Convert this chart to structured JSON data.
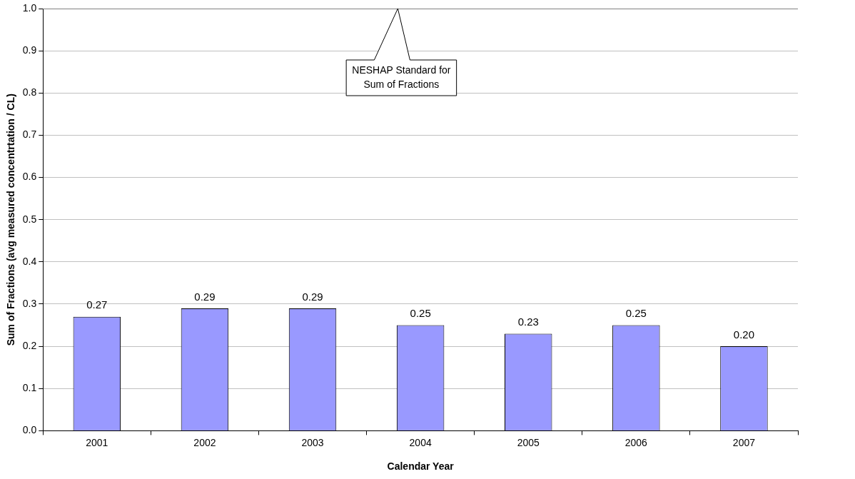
{
  "chart_data": {
    "type": "bar",
    "xlabel": "Calendar Year",
    "ylabel": "Sum of Fractions (avg measured concentrtation / CL)",
    "categories": [
      "2001",
      "2002",
      "2003",
      "2004",
      "2005",
      "2006",
      "2007"
    ],
    "values": [
      0.27,
      0.29,
      0.29,
      0.25,
      0.23,
      0.25,
      0.2
    ],
    "color": "#9999ff",
    "value_labels": [
      "0.27",
      "0.29",
      "0.29",
      "0.25",
      "0.23",
      "0.25",
      "0.20"
    ],
    "ylim": [
      0,
      1
    ],
    "yticks": [
      {
        "value": 0,
        "label": "0.0"
      },
      0.1,
      0.2,
      0.3,
      0.4,
      0.5,
      0.6,
      0.7,
      0.8,
      0.9,
      {
        "value": 1,
        "label": "1.0"
      }
    ],
    "grid": "y",
    "legend": false,
    "annotations": [
      "NESHAP Standard for Sum of Fractions"
    ]
  }
}
